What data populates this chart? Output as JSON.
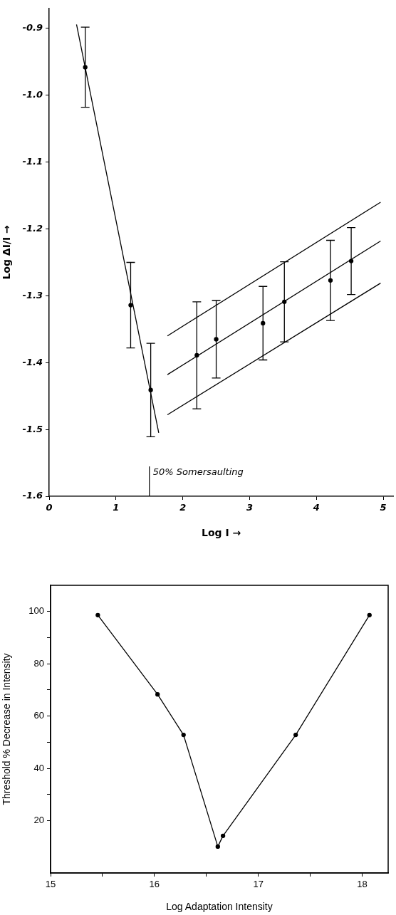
{
  "chart_data": [
    {
      "type": "scatter",
      "xlabel": "Log I →",
      "ylabel": "Log ΔI/I →",
      "xlim": [
        0,
        5.15
      ],
      "xticks": [
        0,
        1,
        2,
        3,
        4,
        5
      ],
      "ylim": [
        -1.6,
        -0.87
      ],
      "yticks": [
        {
          "value": -1.6,
          "label": "-1.6"
        },
        {
          "value": -1.5,
          "label": "-1.5"
        },
        {
          "value": -1.4,
          "label": "-1.4"
        },
        {
          "value": -1.3,
          "label": "-1.3"
        },
        {
          "value": -1.2,
          "label": "-1.2"
        },
        {
          "value": -1.1,
          "label": "-1.1"
        },
        {
          "value": -1,
          "label": "-1.0"
        },
        {
          "value": -0.9,
          "label": "-0.9"
        }
      ],
      "grid": false,
      "legend": false,
      "marker": "circle",
      "series": [
        {
          "color": "#000000",
          "x": [
            0.54,
            1.22,
            1.52,
            2.21,
            2.5,
            3.2,
            3.52,
            4.21,
            4.52
          ],
          "values": [
            -0.958,
            -1.314,
            -1.441,
            -1.389,
            -1.365,
            -1.341,
            -1.309,
            -1.277,
            -1.248
          ],
          "errors": [
            0.06,
            0.064,
            0.07,
            0.08,
            0.058,
            0.055,
            0.06,
            0.06,
            0.05
          ]
        },
        {
          "type": "line",
          "color": "#000000",
          "marker": "none",
          "x": [
            0.41,
            1.64
          ],
          "values": [
            -0.894,
            -1.505
          ]
        },
        {
          "type": "line",
          "color": "#000000",
          "marker": "none",
          "x": [
            1.77,
            4.96
          ],
          "values": [
            -1.36,
            -1.16
          ]
        },
        {
          "type": "line",
          "color": "#000000",
          "marker": "none",
          "x": [
            1.77,
            4.96
          ],
          "values": [
            -1.418,
            -1.218
          ]
        },
        {
          "type": "line",
          "color": "#000000",
          "marker": "none",
          "x": [
            1.77,
            4.96
          ],
          "values": [
            -1.478,
            -1.281
          ]
        }
      ],
      "ref_lines": [
        {
          "axis": "x",
          "value": 1.5,
          "label": "50% Somersaulting"
        }
      ]
    },
    {
      "type": "line",
      "xlabel": "Log Adaptation Intensity",
      "ylabel": "Threshold % Decrease in Intensity",
      "xlim": [
        15,
        18.25
      ],
      "xticks": [
        15,
        {
          "value": 15.5,
          "label": null
        },
        16,
        {
          "value": 16.5,
          "label": null
        },
        17,
        {
          "value": 17.5,
          "label": null
        },
        18
      ],
      "ylim": [
        0,
        110
      ],
      "yticks": [
        20,
        {
          "value": 30,
          "label": null
        },
        40,
        {
          "value": 50,
          "label": null
        },
        60,
        {
          "value": 70,
          "label": null
        },
        80,
        {
          "value": 90,
          "label": null
        },
        100
      ],
      "grid": false,
      "legend": false,
      "marker": "circle",
      "series": [
        {
          "color": "#000000",
          "x": [
            15.455,
            16.03,
            16.28,
            16.61,
            16.66,
            17.36,
            18.07
          ],
          "values": [
            98.6,
            68.3,
            52.8,
            10.1,
            14.2,
            52.8,
            98.6
          ]
        }
      ]
    }
  ]
}
